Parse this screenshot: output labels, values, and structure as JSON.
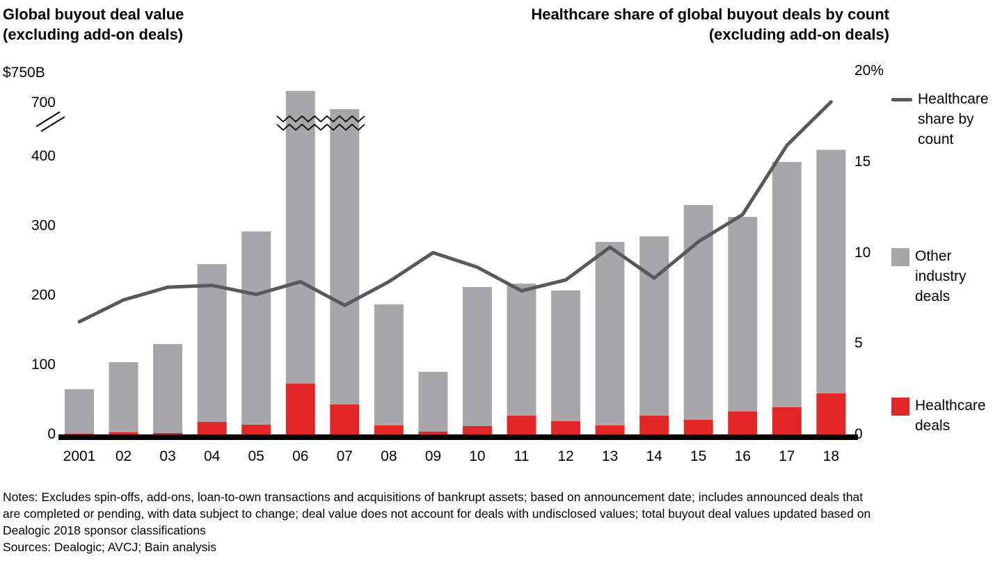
{
  "left_chart": {
    "title_line1": "Global buyout deal value",
    "title_line2": "(excluding add-on deals)",
    "axis_unit_label": "$750B"
  },
  "right_chart": {
    "title_line1": "Healthcare share of global buyout deals by count",
    "title_line2": "(excluding add-on deals)"
  },
  "left_axis": {
    "ticks": [
      {
        "label": "700",
        "value": 700
      },
      {
        "label": "400",
        "value": 400
      },
      {
        "label": "300",
        "value": 300
      },
      {
        "label": "200",
        "value": 200
      },
      {
        "label": "100",
        "value": 100
      },
      {
        "label": "0",
        "value": 0
      }
    ],
    "has_break": true
  },
  "right_axis": {
    "ticks": [
      {
        "label": "20%",
        "value": 20
      },
      {
        "label": "15",
        "value": 15
      },
      {
        "label": "10",
        "value": 10
      },
      {
        "label": "5",
        "value": 5
      },
      {
        "label": "0",
        "value": 0
      }
    ]
  },
  "legend": {
    "share_line_label": "Healthcare share by count",
    "other_deals_label": "Other industry deals",
    "healthcare_deals_label": "Healthcare deals"
  },
  "colors": {
    "healthcare_red": "#e32726",
    "other_gray": "#a7a6a8",
    "share_line_gray": "#58595b",
    "axis_black": "#000000"
  },
  "chart_data": {
    "type": "bar",
    "subtype": "stacked-bars-with-line-overlay",
    "categories": [
      "2001",
      "02",
      "03",
      "04",
      "05",
      "06",
      "07",
      "08",
      "09",
      "10",
      "11",
      "12",
      "13",
      "14",
      "15",
      "16",
      "17",
      "18"
    ],
    "series": [
      {
        "name": "Healthcare deals",
        "type": "bar",
        "stack": "value",
        "axis": "left",
        "unit": "$B",
        "values": [
          1,
          3,
          2,
          18,
          14,
          73,
          43,
          13,
          4,
          12,
          27,
          19,
          13,
          27,
          21,
          33,
          39,
          59
        ]
      },
      {
        "name": "Other industry deals",
        "type": "bar",
        "stack": "value",
        "axis": "left",
        "unit": "$B",
        "values": [
          64,
          101,
          128,
          227,
          278,
          647,
          622,
          174,
          86,
          200,
          190,
          188,
          264,
          258,
          309,
          280,
          353,
          378
        ]
      },
      {
        "name": "Healthcare share by count",
        "type": "line",
        "axis": "right",
        "unit": "%",
        "values": [
          6.2,
          7.4,
          8.1,
          8.2,
          7.7,
          8.4,
          7.1,
          8.4,
          10.0,
          9.2,
          7.9,
          8.5,
          10.3,
          8.6,
          10.6,
          12.1,
          15.9,
          18.3
        ]
      }
    ],
    "bar_totals": [
      65,
      104,
      130,
      245,
      292,
      720,
      665,
      187,
      90,
      212,
      217,
      207,
      277,
      285,
      330,
      313,
      392,
      437
    ],
    "left_axis": {
      "linear_range": [
        0,
        400
      ],
      "break_after": 400,
      "upper_ticks": [
        700,
        750
      ],
      "unit": "$B"
    },
    "right_axis_range": [
      0,
      20
    ],
    "axis_break_years": [
      "06",
      "07"
    ],
    "grid": false,
    "legend_position": "right"
  },
  "notes": {
    "line1": "Notes: Excludes spin-offs, add-ons, loan-to-own transactions and acquisitions of bankrupt assets; based on announcement date; includes announced deals that",
    "line2": "are completed or pending, with data subject to change; deal value does not account for deals with undisclosed values; total buyout deal values updated based on",
    "line3": "Dealogic 2018 sponsor classifications",
    "sources": "Sources: Dealogic; AVCJ; Bain analysis"
  }
}
